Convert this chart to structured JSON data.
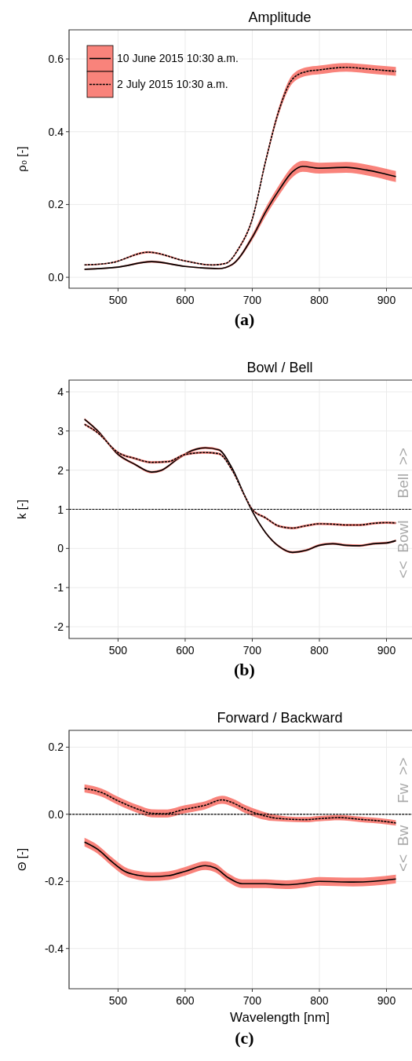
{
  "chart_data": [
    {
      "type": "line",
      "title": "Amplitude",
      "ylabel": "ρ₀ [-]",
      "annotations": [
        "(a)"
      ],
      "xlim": [
        427,
        938
      ],
      "ylim": [
        -0.03,
        0.68
      ],
      "xticks": [
        500,
        600,
        700,
        800,
        900
      ],
      "yticks": [
        {
          "value": 0,
          "label": "0.0"
        },
        0.2,
        0.4,
        0.6
      ],
      "grid": true,
      "legend": "top left",
      "series": [
        {
          "name": "10 June 2015 10:30 a.m.",
          "color": "#000000",
          "line_style": "solid",
          "x": [
            450,
            500,
            550,
            600,
            650,
            670,
            700,
            720,
            740,
            760,
            775,
            800,
            840,
            870,
            900,
            914
          ],
          "values": [
            0.022,
            0.028,
            0.043,
            0.03,
            0.024,
            0.035,
            0.11,
            0.18,
            0.24,
            0.29,
            0.305,
            0.3,
            0.302,
            0.295,
            0.283,
            0.277
          ],
          "lower": [
            0.02,
            0.026,
            0.04,
            0.028,
            0.022,
            0.032,
            0.102,
            0.168,
            0.226,
            0.275,
            0.29,
            0.285,
            0.287,
            0.28,
            0.268,
            0.262
          ],
          "upper": [
            0.024,
            0.03,
            0.046,
            0.032,
            0.026,
            0.038,
            0.118,
            0.192,
            0.254,
            0.305,
            0.32,
            0.315,
            0.317,
            0.31,
            0.298,
            0.292
          ]
        },
        {
          "name": "2 July 2015 10:30 a.m.",
          "color": "#000000",
          "line_style": "dashed",
          "x": [
            450,
            490,
            545,
            600,
            640,
            660,
            680,
            700,
            720,
            740,
            760,
            780,
            800,
            840,
            870,
            900,
            914
          ],
          "values": [
            0.034,
            0.04,
            0.069,
            0.045,
            0.034,
            0.038,
            0.08,
            0.16,
            0.32,
            0.46,
            0.545,
            0.565,
            0.57,
            0.577,
            0.573,
            0.568,
            0.566
          ],
          "lower": [
            0.032,
            0.038,
            0.066,
            0.043,
            0.032,
            0.036,
            0.076,
            0.154,
            0.312,
            0.45,
            0.533,
            0.553,
            0.558,
            0.565,
            0.561,
            0.556,
            0.554
          ],
          "upper": [
            0.036,
            0.042,
            0.072,
            0.047,
            0.036,
            0.04,
            0.084,
            0.166,
            0.328,
            0.47,
            0.557,
            0.577,
            0.582,
            0.589,
            0.585,
            0.58,
            0.578
          ]
        }
      ]
    },
    {
      "type": "line",
      "title": "Bowl / Bell",
      "ylabel": "k [-]",
      "annotations": [
        "<<  Bowl",
        "Bell  >>",
        "(b)"
      ],
      "xlim": [
        427,
        938
      ],
      "ylim": [
        -2.3,
        4.3
      ],
      "xticks": [
        500,
        600,
        700,
        800,
        900
      ],
      "yticks": [
        -2,
        -1,
        0,
        1,
        2,
        3,
        4
      ],
      "grid": true,
      "ref_lines": [
        {
          "axis": "y",
          "value": 1,
          "color": "#000000",
          "line_style": "dashed"
        }
      ],
      "series": [
        {
          "color": "#000000",
          "line_style": "solid",
          "x": [
            450,
            470,
            500,
            525,
            550,
            565,
            590,
            610,
            630,
            650,
            670,
            690,
            700,
            720,
            740,
            760,
            780,
            800,
            820,
            840,
            860,
            880,
            900,
            914
          ],
          "values": [
            3.3,
            3.0,
            2.4,
            2.15,
            1.95,
            2.0,
            2.3,
            2.5,
            2.57,
            2.52,
            2.05,
            1.3,
            0.95,
            0.4,
            0.05,
            -0.1,
            -0.05,
            0.08,
            0.12,
            0.08,
            0.07,
            0.12,
            0.14,
            0.2
          ],
          "lower": [
            3.27,
            2.97,
            2.37,
            2.12,
            1.92,
            1.97,
            2.27,
            2.47,
            2.54,
            2.49,
            2.02,
            1.27,
            0.92,
            0.37,
            0.02,
            -0.13,
            -0.08,
            0.05,
            0.09,
            0.05,
            0.04,
            0.09,
            0.11,
            0.17
          ],
          "upper": [
            3.33,
            3.03,
            2.43,
            2.18,
            1.98,
            2.03,
            2.33,
            2.53,
            2.6,
            2.55,
            2.08,
            1.33,
            0.98,
            0.43,
            0.08,
            -0.07,
            -0.02,
            0.11,
            0.15,
            0.11,
            0.1,
            0.15,
            0.17,
            0.23
          ]
        },
        {
          "color": "#000000",
          "line_style": "dashed",
          "x": [
            450,
            470,
            500,
            525,
            550,
            575,
            600,
            630,
            650,
            670,
            690,
            700,
            720,
            740,
            760,
            780,
            800,
            820,
            840,
            860,
            880,
            900,
            914
          ],
          "values": [
            3.17,
            2.95,
            2.45,
            2.3,
            2.2,
            2.22,
            2.4,
            2.45,
            2.42,
            2.0,
            1.3,
            1.0,
            0.78,
            0.57,
            0.52,
            0.58,
            0.63,
            0.62,
            0.6,
            0.6,
            0.64,
            0.66,
            0.65
          ],
          "lower": [
            3.14,
            2.92,
            2.42,
            2.27,
            2.17,
            2.19,
            2.37,
            2.42,
            2.39,
            1.97,
            1.27,
            0.97,
            0.75,
            0.54,
            0.49,
            0.55,
            0.6,
            0.59,
            0.57,
            0.57,
            0.61,
            0.63,
            0.62
          ],
          "upper": [
            3.2,
            2.98,
            2.48,
            2.33,
            2.23,
            2.25,
            2.43,
            2.48,
            2.45,
            2.03,
            1.33,
            1.03,
            0.81,
            0.6,
            0.55,
            0.61,
            0.66,
            0.65,
            0.63,
            0.63,
            0.67,
            0.69,
            0.68
          ]
        }
      ]
    },
    {
      "type": "line",
      "title": "Forward / Backward",
      "xlabel": "Wavelength [nm]",
      "ylabel": "Θ [-]",
      "annotations": [
        "<<  Bw",
        "Fw  >>",
        "(c)"
      ],
      "xlim": [
        427,
        938
      ],
      "ylim": [
        -0.52,
        0.25
      ],
      "xticks": [
        500,
        600,
        700,
        800,
        900
      ],
      "yticks": [
        -0.4,
        -0.2,
        {
          "value": 0,
          "label": "0.0"
        },
        0.2
      ],
      "grid": true,
      "ref_lines": [
        {
          "axis": "y",
          "value": 0,
          "color": "#000000",
          "line_style": "dashed"
        }
      ],
      "series": [
        {
          "color": "#000000",
          "line_style": "dashed",
          "x": [
            450,
            475,
            500,
            530,
            550,
            570,
            600,
            630,
            655,
            670,
            690,
            710,
            730,
            750,
            780,
            800,
            830,
            860,
            900,
            914
          ],
          "values": [
            0.077,
            0.065,
            0.04,
            0.015,
            0.003,
            0.002,
            0.015,
            0.027,
            0.043,
            0.035,
            0.015,
            0.0,
            -0.01,
            -0.014,
            -0.016,
            -0.013,
            -0.01,
            -0.015,
            -0.022,
            -0.026
          ],
          "lower": [
            0.065,
            0.053,
            0.028,
            0.003,
            -0.009,
            -0.01,
            0.003,
            0.015,
            0.031,
            0.023,
            0.003,
            -0.012,
            -0.02,
            -0.022,
            -0.024,
            -0.021,
            -0.018,
            -0.023,
            -0.03,
            -0.034
          ],
          "upper": [
            0.089,
            0.077,
            0.052,
            0.027,
            0.015,
            0.014,
            0.027,
            0.039,
            0.055,
            0.047,
            0.027,
            0.012,
            0.0,
            -0.006,
            -0.008,
            -0.005,
            -0.002,
            -0.007,
            -0.014,
            -0.018
          ]
        },
        {
          "color": "#000000",
          "line_style": "solid",
          "x": [
            450,
            470,
            490,
            510,
            530,
            550,
            575,
            600,
            630,
            645,
            665,
            685,
            720,
            750,
            780,
            800,
            850,
            880,
            914
          ],
          "values": [
            -0.083,
            -0.105,
            -0.14,
            -0.17,
            -0.182,
            -0.186,
            -0.183,
            -0.17,
            -0.153,
            -0.16,
            -0.19,
            -0.207,
            -0.207,
            -0.21,
            -0.205,
            -0.2,
            -0.202,
            -0.2,
            -0.193
          ],
          "lower": [
            -0.096,
            -0.118,
            -0.153,
            -0.183,
            -0.195,
            -0.199,
            -0.196,
            -0.183,
            -0.166,
            -0.173,
            -0.203,
            -0.22,
            -0.22,
            -0.223,
            -0.218,
            -0.213,
            -0.215,
            -0.213,
            -0.206
          ],
          "upper": [
            -0.07,
            -0.092,
            -0.127,
            -0.157,
            -0.169,
            -0.173,
            -0.17,
            -0.157,
            -0.14,
            -0.147,
            -0.177,
            -0.194,
            -0.194,
            -0.197,
            -0.192,
            -0.187,
            -0.189,
            -0.187,
            -0.18
          ]
        }
      ]
    }
  ]
}
